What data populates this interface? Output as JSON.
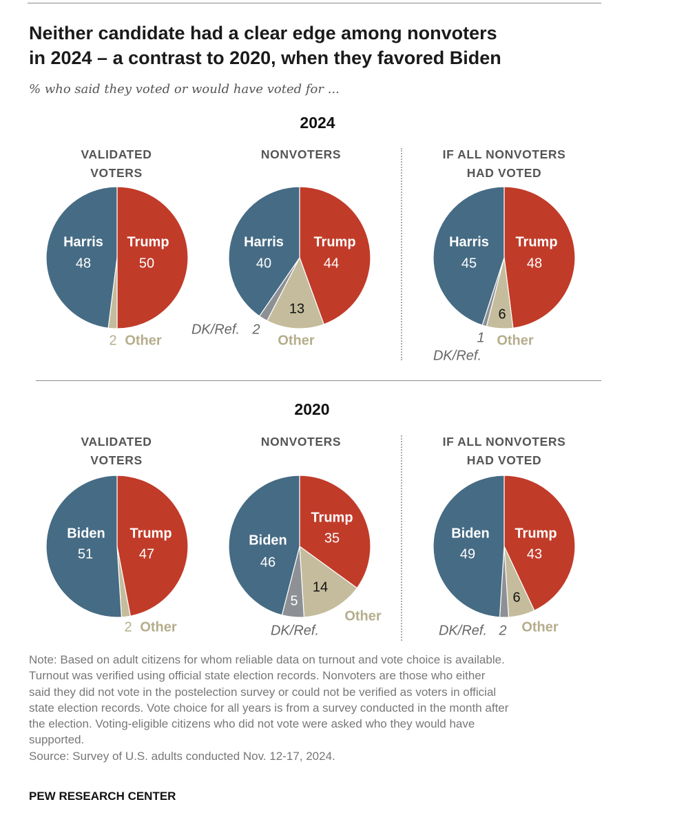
{
  "title_lines": [
    "Neither candidate had a clear edge among nonvoters",
    "in 2024 – a contrast to 2020, when they favored Biden"
  ],
  "subtitle": "% who said they voted or would have voted for ...",
  "colors": {
    "dem": "#466b84",
    "rep": "#c13b29",
    "other": "#c4bc9c",
    "dk": "#8d9095"
  },
  "chart_data": [
    {
      "type": "pie",
      "year": "2024",
      "title_lines": [
        "VALIDATED",
        "VOTERS"
      ],
      "slices": [
        {
          "label": "Trump",
          "value": 50
        },
        {
          "label": "Other",
          "value": 2
        },
        {
          "label": "Harris",
          "value": 48
        }
      ]
    },
    {
      "type": "pie",
      "year": "2024",
      "title_lines": [
        "NONVOTERS"
      ],
      "slices": [
        {
          "label": "Trump",
          "value": 44
        },
        {
          "label": "Other",
          "value": 13
        },
        {
          "label": "DK/Ref.",
          "value": 2
        },
        {
          "label": "Harris",
          "value": 40
        }
      ]
    },
    {
      "type": "pie",
      "year": "2024",
      "title_lines": [
        "IF ALL NONVOTERS",
        "HAD VOTED"
      ],
      "slices": [
        {
          "label": "Trump",
          "value": 48
        },
        {
          "label": "Other",
          "value": 6
        },
        {
          "label": "DK/Ref.",
          "value": 1
        },
        {
          "label": "Harris",
          "value": 45
        }
      ]
    },
    {
      "type": "pie",
      "year": "2020",
      "title_lines": [
        "VALIDATED",
        "VOTERS"
      ],
      "slices": [
        {
          "label": "Trump",
          "value": 47
        },
        {
          "label": "Other",
          "value": 2
        },
        {
          "label": "Biden",
          "value": 51
        }
      ]
    },
    {
      "type": "pie",
      "year": "2020",
      "title_lines": [
        "NONVOTERS"
      ],
      "slices": [
        {
          "label": "Trump",
          "value": 35
        },
        {
          "label": "Other",
          "value": 14
        },
        {
          "label": "DK/Ref.",
          "value": 5
        },
        {
          "label": "Biden",
          "value": 46
        }
      ]
    },
    {
      "type": "pie",
      "year": "2020",
      "title_lines": [
        "IF ALL NONVOTERS",
        "HAD VOTED"
      ],
      "slices": [
        {
          "label": "Trump",
          "value": 43
        },
        {
          "label": "Other",
          "value": 6
        },
        {
          "label": "DK/Ref.",
          "value": 2
        },
        {
          "label": "Biden",
          "value": 49
        }
      ]
    }
  ],
  "years": [
    "2024",
    "2020"
  ],
  "note_lines": [
    "Note: Based on adult citizens for whom reliable data on turnout and vote choice is available.",
    "Turnout was verified using official state election records. Nonvoters are those who either",
    "said they did not vote in the postelection survey or could not be verified as voters in official",
    "state election records. Vote choice for all years is from a survey conducted in the month after",
    "the election. Voting-eligible citizens who did not vote were asked who they would have",
    "supported."
  ],
  "source": "Source: Survey of U.S. adults conducted Nov. 12-17, 2024.",
  "brand": "PEW RESEARCH CENTER"
}
